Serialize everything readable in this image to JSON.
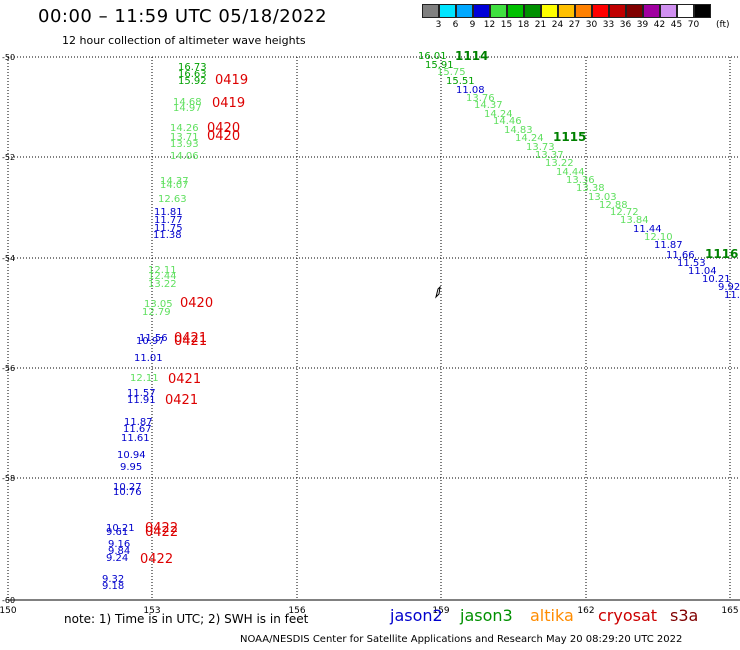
{
  "title": "00:00 – 11:59 UTC 05/18/2022",
  "subtitle": "12 hour collection of altimeter wave heights",
  "colorbar": {
    "colors": [
      "#808080",
      "#00e5ff",
      "#00a8ff",
      "#0000d8",
      "#40e040",
      "#00c000",
      "#009000",
      "#ffff00",
      "#ffc000",
      "#ff8000",
      "#ff0000",
      "#c00000",
      "#800000",
      "#a000a0",
      "#d090f0",
      "#ffffff",
      "#000000"
    ],
    "labels": [
      "3",
      "6",
      "9",
      "12",
      "15",
      "18",
      "21",
      "24",
      "27",
      "30",
      "33",
      "36",
      "39",
      "42",
      "45",
      "70"
    ],
    "unit": "(ft)"
  },
  "note": "note:  1) Time is in UTC;  2) SWH is in feet",
  "satellites": [
    {
      "name": "jason2",
      "color": "#0000cc"
    },
    {
      "name": "jason3",
      "color": "#009000"
    },
    {
      "name": "altika",
      "color": "#ff8c00"
    },
    {
      "name": "cryosat",
      "color": "#cc0000"
    },
    {
      "name": "s3a",
      "color": "#800000"
    }
  ],
  "credit": "NOAA/NESDIS Center for Satellite Applications and Research     May 20 08:29:20 UTC 2022",
  "map": {
    "lon_ticks": [
      "150",
      "153",
      "156",
      "159",
      "162",
      "165"
    ],
    "lat_ticks": [
      "-50",
      "-52",
      "-54",
      "-56",
      "-58",
      "-60"
    ],
    "left_track_points": [
      {
        "label": "16.73",
        "color": "#00a000"
      },
      {
        "label": "16.63",
        "color": "#00a000"
      },
      {
        "label": "15.92",
        "color": "#00a000"
      },
      {
        "label": "14.68",
        "color": "#60e060"
      },
      {
        "label": "14.97",
        "color": "#60e060"
      },
      {
        "label": "14.26",
        "color": "#60e060"
      },
      {
        "label": "13.71",
        "color": "#60e060"
      },
      {
        "label": "13.93",
        "color": "#60e060"
      },
      {
        "label": "14.06",
        "color": "#60e060"
      },
      {
        "label": "14.37",
        "color": "#60e060"
      },
      {
        "label": "14.07",
        "color": "#60e060"
      },
      {
        "label": "12.63",
        "color": "#60e060"
      },
      {
        "label": "11.81",
        "color": "#0000cc"
      },
      {
        "label": "11.77",
        "color": "#0000cc"
      },
      {
        "label": "11.75",
        "color": "#0000cc"
      },
      {
        "label": "11.38",
        "color": "#0000cc"
      },
      {
        "label": "12.11",
        "color": "#60e060"
      },
      {
        "label": "12.44",
        "color": "#60e060"
      },
      {
        "label": "13.22",
        "color": "#60e060"
      },
      {
        "label": "13.05",
        "color": "#60e060"
      },
      {
        "label": "12.79",
        "color": "#60e060"
      },
      {
        "label": "11.56",
        "color": "#0000cc"
      },
      {
        "label": "10.97",
        "color": "#0000cc"
      },
      {
        "label": "11.01",
        "color": "#0000cc"
      },
      {
        "label": "12.11",
        "color": "#60e060"
      },
      {
        "label": "11.57",
        "color": "#0000cc"
      },
      {
        "label": "11.91",
        "color": "#0000cc"
      },
      {
        "label": "11.87",
        "color": "#0000cc"
      },
      {
        "label": "11.67",
        "color": "#0000cc"
      },
      {
        "label": "11.61",
        "color": "#0000cc"
      },
      {
        "label": "10.94",
        "color": "#0000cc"
      },
      {
        "label": "9.95",
        "color": "#0000cc"
      },
      {
        "label": "10.27",
        "color": "#0000cc"
      },
      {
        "label": "10.76",
        "color": "#0000cc"
      },
      {
        "label": "10.21",
        "color": "#0000cc"
      },
      {
        "label": "9.61",
        "color": "#0000cc"
      },
      {
        "label": "9.16",
        "color": "#0000cc"
      },
      {
        "label": "9.84",
        "color": "#0000cc"
      },
      {
        "label": "9.24",
        "color": "#0000cc"
      },
      {
        "label": "9.32",
        "color": "#0000cc"
      },
      {
        "label": "9.18",
        "color": "#0000cc"
      }
    ],
    "left_track_times": [
      {
        "label": "0419",
        "color": "#dd0000"
      },
      {
        "label": "0419",
        "color": "#dd0000"
      },
      {
        "label": "0420",
        "color": "#dd0000"
      },
      {
        "label": "0420",
        "color": "#dd0000"
      },
      {
        "label": "0420",
        "color": "#dd0000"
      },
      {
        "label": "0421",
        "color": "#dd0000"
      },
      {
        "label": "0421",
        "color": "#dd0000"
      },
      {
        "label": "0421",
        "color": "#dd0000"
      },
      {
        "label": "0421",
        "color": "#dd0000"
      },
      {
        "label": "0422",
        "color": "#dd0000"
      },
      {
        "label": "0422",
        "color": "#dd0000"
      },
      {
        "label": "0422",
        "color": "#dd0000"
      }
    ],
    "right_track_points": [
      {
        "label": "16.01",
        "color": "#00a000"
      },
      {
        "label": "15.91",
        "color": "#00a000"
      },
      {
        "label": "15.75",
        "color": "#60e060"
      },
      {
        "label": "15.51",
        "color": "#00a000"
      },
      {
        "label": "11.08",
        "color": "#0000cc"
      },
      {
        "label": "13.76",
        "color": "#60e060"
      },
      {
        "label": "14.37",
        "color": "#60e060"
      },
      {
        "label": "14.24",
        "color": "#60e060"
      },
      {
        "label": "14.46",
        "color": "#60e060"
      },
      {
        "label": "14.83",
        "color": "#60e060"
      },
      {
        "label": "14.24",
        "color": "#60e060"
      },
      {
        "label": "13.73",
        "color": "#60e060"
      },
      {
        "label": "13.37",
        "color": "#60e060"
      },
      {
        "label": "13.22",
        "color": "#60e060"
      },
      {
        "label": "14.44",
        "color": "#60e060"
      },
      {
        "label": "13.36",
        "color": "#60e060"
      },
      {
        "label": "13.38",
        "color": "#60e060"
      },
      {
        "label": "13.03",
        "color": "#60e060"
      },
      {
        "label": "12.88",
        "color": "#60e060"
      },
      {
        "label": "12.72",
        "color": "#60e060"
      },
      {
        "label": "13.84",
        "color": "#60e060"
      },
      {
        "label": "11.44",
        "color": "#0000cc"
      },
      {
        "label": "12.10",
        "color": "#60e060"
      },
      {
        "label": "11.87",
        "color": "#0000cc"
      },
      {
        "label": "11.66",
        "color": "#0000cc"
      },
      {
        "label": "11.53",
        "color": "#0000cc"
      },
      {
        "label": "11.04",
        "color": "#0000cc"
      },
      {
        "label": "10.21",
        "color": "#0000cc"
      },
      {
        "label": "9.92",
        "color": "#0000cc"
      },
      {
        "label": "11.",
        "color": "#0000cc"
      }
    ],
    "right_track_times": [
      {
        "label": "1114",
        "color": "#008000"
      },
      {
        "label": "1115",
        "color": "#008000"
      },
      {
        "label": "1116",
        "color": "#008000"
      }
    ]
  }
}
